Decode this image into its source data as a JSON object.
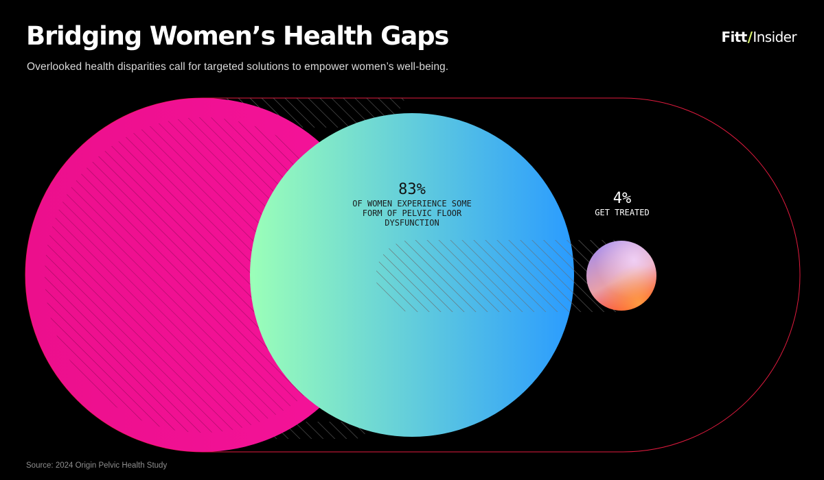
{
  "header": {
    "title": "Bridging Women’s Health Gaps",
    "subtitle": "Overlooked health disparities call for targeted solutions to empower women’s well-being."
  },
  "brand": {
    "part1": "Fitt",
    "separator": "/",
    "part2": "Insider",
    "accent_color": "#d8f26a"
  },
  "footer": {
    "source": "Source: 2024 Origin Pelvic Health Study"
  },
  "chart_data": {
    "type": "proportional-area",
    "title": "",
    "series": [
      {
        "value": 100,
        "value_label": "",
        "label": [],
        "colors": [
          "#ec0f8c",
          "#f5139a"
        ]
      },
      {
        "value": 83,
        "value_label": "83%",
        "label": [
          "OF WOMEN EXPERIENCE SOME",
          "FORM OF PELVIC FLOOR",
          "DYSFUNCTION"
        ],
        "colors": [
          "#9bffb8",
          "#2a9bff"
        ]
      },
      {
        "value": 4,
        "value_label": "4%",
        "label": [
          "GET TREATED"
        ],
        "colors": [
          "#a28cf0",
          "#ff2d1a"
        ]
      }
    ],
    "frame_color": "#e31b3f"
  }
}
